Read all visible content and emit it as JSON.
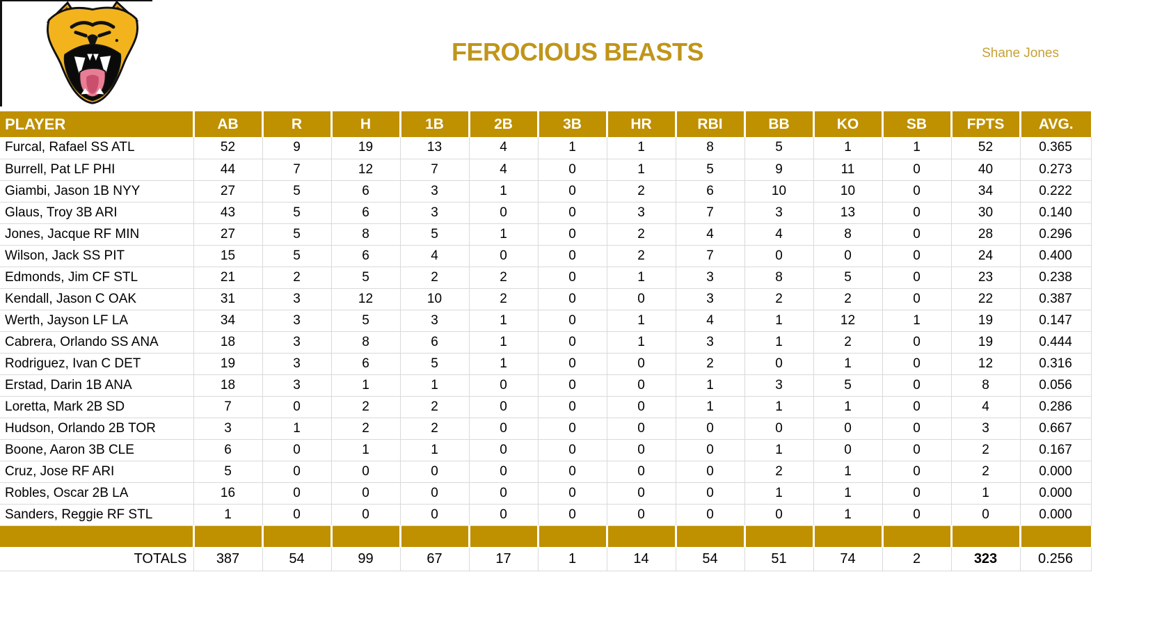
{
  "header": {
    "title": "FEROCIOUS BEASTS",
    "owner": "Shane Jones",
    "logo": "roaring-cougar-head"
  },
  "table": {
    "columns": [
      "PLAYER",
      "AB",
      "R",
      "H",
      "1B",
      "2B",
      "3B",
      "HR",
      "RBI",
      "BB",
      "KO",
      "SB",
      "FPTS",
      "AVG."
    ],
    "rows": [
      {
        "player": "Furcal, Rafael SS ATL",
        "stats": [
          "52",
          "9",
          "19",
          "13",
          "4",
          "1",
          "1",
          "8",
          "5",
          "1",
          "1",
          "52",
          "0.365"
        ]
      },
      {
        "player": "Burrell, Pat LF PHI",
        "stats": [
          "44",
          "7",
          "12",
          "7",
          "4",
          "0",
          "1",
          "5",
          "9",
          "11",
          "0",
          "40",
          "0.273"
        ]
      },
      {
        "player": "Giambi, Jason 1B NYY",
        "stats": [
          "27",
          "5",
          "6",
          "3",
          "1",
          "0",
          "2",
          "6",
          "10",
          "10",
          "0",
          "34",
          "0.222"
        ]
      },
      {
        "player": "Glaus, Troy 3B ARI",
        "stats": [
          "43",
          "5",
          "6",
          "3",
          "0",
          "0",
          "3",
          "7",
          "3",
          "13",
          "0",
          "30",
          "0.140"
        ]
      },
      {
        "player": "Jones, Jacque RF MIN",
        "stats": [
          "27",
          "5",
          "8",
          "5",
          "1",
          "0",
          "2",
          "4",
          "4",
          "8",
          "0",
          "28",
          "0.296"
        ]
      },
      {
        "player": "Wilson, Jack SS PIT",
        "stats": [
          "15",
          "5",
          "6",
          "4",
          "0",
          "0",
          "2",
          "7",
          "0",
          "0",
          "0",
          "24",
          "0.400"
        ]
      },
      {
        "player": "Edmonds, Jim CF STL",
        "stats": [
          "21",
          "2",
          "5",
          "2",
          "2",
          "0",
          "1",
          "3",
          "8",
          "5",
          "0",
          "23",
          "0.238"
        ]
      },
      {
        "player": "Kendall, Jason C OAK",
        "stats": [
          "31",
          "3",
          "12",
          "10",
          "2",
          "0",
          "0",
          "3",
          "2",
          "2",
          "0",
          "22",
          "0.387"
        ]
      },
      {
        "player": "Werth, Jayson LF LA",
        "stats": [
          "34",
          "3",
          "5",
          "3",
          "1",
          "0",
          "1",
          "4",
          "1",
          "12",
          "1",
          "19",
          "0.147"
        ]
      },
      {
        "player": "Cabrera, Orlando SS ANA",
        "stats": [
          "18",
          "3",
          "8",
          "6",
          "1",
          "0",
          "1",
          "3",
          "1",
          "2",
          "0",
          "19",
          "0.444"
        ]
      },
      {
        "player": "Rodriguez, Ivan C DET",
        "stats": [
          "19",
          "3",
          "6",
          "5",
          "1",
          "0",
          "0",
          "2",
          "0",
          "1",
          "0",
          "12",
          "0.316"
        ]
      },
      {
        "player": "Erstad, Darin 1B ANA",
        "stats": [
          "18",
          "3",
          "1",
          "1",
          "0",
          "0",
          "0",
          "1",
          "3",
          "5",
          "0",
          "8",
          "0.056"
        ]
      },
      {
        "player": "Loretta, Mark 2B SD",
        "stats": [
          "7",
          "0",
          "2",
          "2",
          "0",
          "0",
          "0",
          "1",
          "1",
          "1",
          "0",
          "4",
          "0.286"
        ]
      },
      {
        "player": "Hudson, Orlando 2B TOR",
        "stats": [
          "3",
          "1",
          "2",
          "2",
          "0",
          "0",
          "0",
          "0",
          "0",
          "0",
          "0",
          "3",
          "0.667"
        ]
      },
      {
        "player": "Boone, Aaron 3B CLE",
        "stats": [
          "6",
          "0",
          "1",
          "1",
          "0",
          "0",
          "0",
          "0",
          "1",
          "0",
          "0",
          "2",
          "0.167"
        ]
      },
      {
        "player": "Cruz, Jose RF ARI",
        "stats": [
          "5",
          "0",
          "0",
          "0",
          "0",
          "0",
          "0",
          "0",
          "2",
          "1",
          "0",
          "2",
          "0.000"
        ]
      },
      {
        "player": "Robles, Oscar 2B LA",
        "stats": [
          "16",
          "0",
          "0",
          "0",
          "0",
          "0",
          "0",
          "0",
          "1",
          "1",
          "0",
          "1",
          "0.000"
        ]
      },
      {
        "player": "Sanders, Reggie RF STL",
        "stats": [
          "1",
          "0",
          "0",
          "0",
          "0",
          "0",
          "0",
          "0",
          "0",
          "1",
          "0",
          "0",
          "0.000"
        ]
      }
    ],
    "totals": {
      "label": "TOTALS",
      "stats": [
        "387",
        "54",
        "99",
        "67",
        "17",
        "1",
        "14",
        "54",
        "51",
        "74",
        "2",
        "323",
        "0.256"
      ]
    }
  },
  "colors": {
    "gold": "#BF9000",
    "title_gold": "#C0951A",
    "owner_gold": "#C6A136",
    "grid": "#D9D9D9",
    "border_black": "#111111"
  }
}
